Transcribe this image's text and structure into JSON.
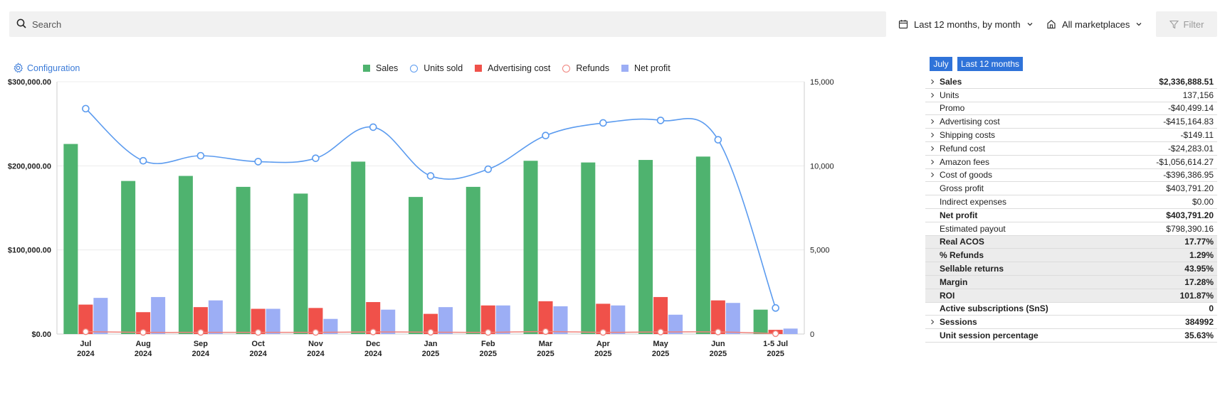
{
  "search": {
    "placeholder": "Search"
  },
  "toolbar": {
    "period_label": "Last 12 months, by month",
    "marketplace_label": "All marketplaces",
    "filter_label": "Filter"
  },
  "configuration_label": "Configuration",
  "period_buttons": {
    "month": "July",
    "year": "Last 12 months"
  },
  "colors": {
    "sales": "#4fb36f",
    "units": "#5b9bef",
    "advertising": "#f0514a",
    "refunds": "#f0837c",
    "net_profit": "#9caef5",
    "accent": "#2f73d9"
  },
  "chart_data": {
    "type": "bar",
    "categories": [
      [
        "Jul",
        "2024"
      ],
      [
        "Aug",
        "2024"
      ],
      [
        "Sep",
        "2024"
      ],
      [
        "Oct",
        "2024"
      ],
      [
        "Nov",
        "2024"
      ],
      [
        "Dec",
        "2024"
      ],
      [
        "Jan",
        "2025"
      ],
      [
        "Feb",
        "2025"
      ],
      [
        "Mar",
        "2025"
      ],
      [
        "Apr",
        "2025"
      ],
      [
        "May",
        "2025"
      ],
      [
        "Jun",
        "2025"
      ],
      [
        "1-5 Jul",
        "2025"
      ]
    ],
    "series": [
      {
        "name": "Sales",
        "kind": "bar",
        "axis": "left",
        "values": [
          226000,
          182000,
          188000,
          175000,
          167000,
          205000,
          163000,
          175000,
          206000,
          204000,
          207000,
          211000,
          29000
        ]
      },
      {
        "name": "Advertising cost",
        "kind": "bar",
        "axis": "left",
        "values": [
          35000,
          26000,
          32000,
          30000,
          31000,
          38000,
          24000,
          34000,
          39000,
          36000,
          44000,
          40000,
          5000
        ]
      },
      {
        "name": "Net profit",
        "kind": "bar",
        "axis": "left",
        "values": [
          43000,
          44000,
          40000,
          30000,
          18000,
          29000,
          32000,
          34000,
          33000,
          34000,
          23000,
          37000,
          6500
        ]
      },
      {
        "name": "Units sold",
        "kind": "line",
        "axis": "right",
        "values": [
          13400,
          10300,
          10600,
          10250,
          10450,
          12300,
          9400,
          9800,
          11800,
          12550,
          12700,
          11550,
          1550
        ]
      },
      {
        "name": "Refunds",
        "kind": "line",
        "axis": "left",
        "values": [
          2800,
          2000,
          2000,
          2000,
          2000,
          2500,
          2200,
          2000,
          3000,
          2000,
          2500,
          2500,
          500
        ]
      }
    ],
    "left_axis": {
      "ticks": [
        "$0.00",
        "$100,000.00",
        "$200,000.00",
        "$300,000.00"
      ],
      "range": [
        0,
        300000
      ]
    },
    "right_axis": {
      "ticks": [
        "0",
        "5,000",
        "10,000",
        "15,000"
      ],
      "range": [
        0,
        15000
      ]
    },
    "legend": [
      "Sales",
      "Units sold",
      "Advertising cost",
      "Refunds",
      "Net profit"
    ],
    "legend_position": "top-center",
    "grid": true
  },
  "summary": [
    {
      "label": "Sales",
      "value": "$2,336,888.51",
      "expandable": true,
      "bold": true,
      "shade": false
    },
    {
      "label": "Units",
      "value": "137,156",
      "expandable": true,
      "bold": false,
      "shade": false
    },
    {
      "label": "Promo",
      "value": "-$40,499.14",
      "expandable": false,
      "bold": false,
      "shade": false
    },
    {
      "label": "Advertising cost",
      "value": "-$415,164.83",
      "expandable": true,
      "bold": false,
      "shade": false
    },
    {
      "label": "Shipping costs",
      "value": "-$149.11",
      "expandable": true,
      "bold": false,
      "shade": false
    },
    {
      "label": "Refund cost",
      "value": "-$24,283.01",
      "expandable": true,
      "bold": false,
      "shade": false
    },
    {
      "label": "Amazon fees",
      "value": "-$1,056,614.27",
      "expandable": true,
      "bold": false,
      "shade": false
    },
    {
      "label": "Cost of goods",
      "value": "-$396,386.95",
      "expandable": true,
      "bold": false,
      "shade": false
    },
    {
      "label": "Gross profit",
      "value": "$403,791.20",
      "expandable": false,
      "bold": false,
      "shade": false
    },
    {
      "label": "Indirect expenses",
      "value": "$0.00",
      "expandable": false,
      "bold": false,
      "shade": false
    },
    {
      "label": "Net profit",
      "value": "$403,791.20",
      "expandable": false,
      "bold": true,
      "shade": false
    },
    {
      "label": "Estimated payout",
      "value": "$798,390.16",
      "expandable": false,
      "bold": false,
      "shade": false
    },
    {
      "label": "Real ACOS",
      "value": "17.77%",
      "expandable": false,
      "bold": true,
      "shade": true
    },
    {
      "label": "% Refunds",
      "value": "1.29%",
      "expandable": false,
      "bold": true,
      "shade": true
    },
    {
      "label": "Sellable returns",
      "value": "43.95%",
      "expandable": false,
      "bold": true,
      "shade": true
    },
    {
      "label": "Margin",
      "value": "17.28%",
      "expandable": false,
      "bold": true,
      "shade": true
    },
    {
      "label": "ROI",
      "value": "101.87%",
      "expandable": false,
      "bold": true,
      "shade": true
    },
    {
      "label": "Active subscriptions (SnS)",
      "value": "0",
      "expandable": false,
      "bold": true,
      "shade": false
    },
    {
      "label": "Sessions",
      "value": "384992",
      "expandable": true,
      "bold": true,
      "shade": false
    },
    {
      "label": "Unit session percentage",
      "value": "35.63%",
      "expandable": false,
      "bold": true,
      "shade": false
    }
  ]
}
